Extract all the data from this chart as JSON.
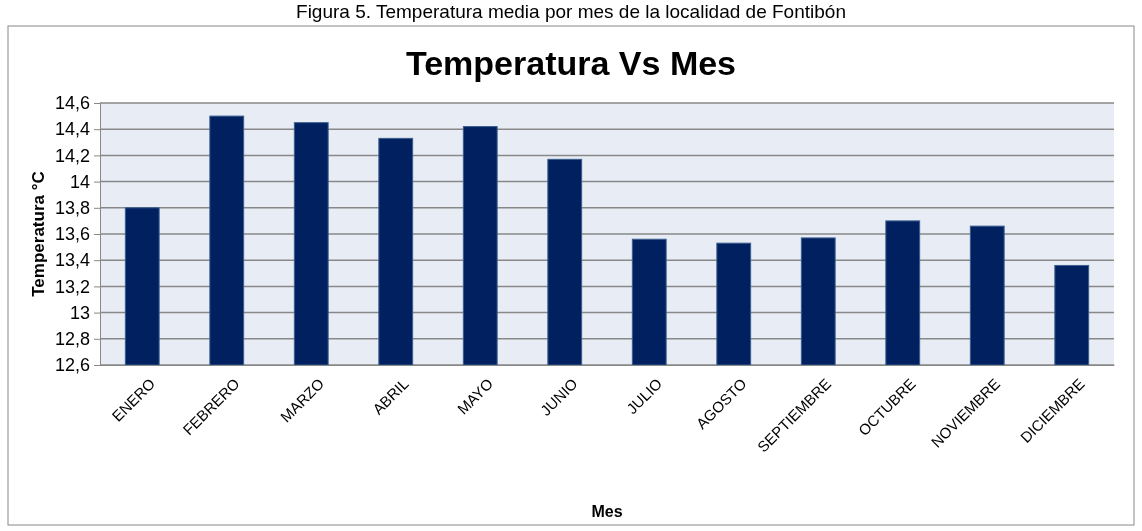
{
  "chart_data": {
    "type": "bar",
    "title": "Temperatura Vs Mes",
    "xlabel": "Mes",
    "ylabel": "Temperatura °C",
    "annotations": [
      "Figura 5. Temperatura media por mes de la localidad de Fontibón"
    ],
    "categories": [
      "ENERO",
      "FEBRERO",
      "MARZO",
      "ABRIL",
      "MAYO",
      "JUNIO",
      "JULIO",
      "AGOSTO",
      "SEPTIEMBRE",
      "OCTUBRE",
      "NOVIEMBRE",
      "DICIEMBRE"
    ],
    "values": [
      13.8,
      14.5,
      14.45,
      14.33,
      14.42,
      14.17,
      13.56,
      13.53,
      13.57,
      13.7,
      13.66,
      13.36
    ],
    "color": "#002060",
    "ylim": [
      12.6,
      14.6
    ],
    "yticks": [
      {
        "value": 12.6,
        "label": "12,6"
      },
      {
        "value": 12.8,
        "label": "12,8"
      },
      13,
      {
        "value": 13.2,
        "label": "13,2"
      },
      {
        "value": 13.4,
        "label": "13,4"
      },
      {
        "value": 13.6,
        "label": "13,6"
      },
      {
        "value": 13.8,
        "label": "13,8"
      },
      14,
      {
        "value": 14.2,
        "label": "14,2"
      },
      {
        "value": 14.4,
        "label": "14,4"
      },
      {
        "value": 14.6,
        "label": "14,6"
      }
    ],
    "grid": "y"
  }
}
